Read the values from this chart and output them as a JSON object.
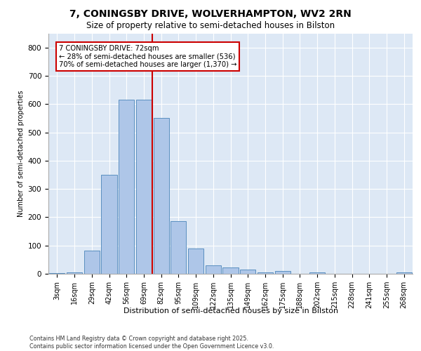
{
  "title_line1": "7, CONINGSBY DRIVE, WOLVERHAMPTON, WV2 2RN",
  "title_line2": "Size of property relative to semi-detached houses in Bilston",
  "xlabel": "Distribution of semi-detached houses by size in Bilston",
  "ylabel": "Number of semi-detached properties",
  "footer_line1": "Contains HM Land Registry data © Crown copyright and database right 2025.",
  "footer_line2": "Contains public sector information licensed under the Open Government Licence v3.0.",
  "annotation_line1": "7 CONINGSBY DRIVE: 72sqm",
  "annotation_line2": "← 28% of semi-detached houses are smaller (536)",
  "annotation_line3": "70% of semi-detached houses are larger (1,370) →",
  "bar_categories": [
    "3sqm",
    "16sqm",
    "29sqm",
    "42sqm",
    "56sqm",
    "69sqm",
    "82sqm",
    "95sqm",
    "109sqm",
    "122sqm",
    "135sqm",
    "149sqm",
    "162sqm",
    "175sqm",
    "188sqm",
    "202sqm",
    "215sqm",
    "228sqm",
    "241sqm",
    "255sqm",
    "268sqm"
  ],
  "bar_heights": [
    2,
    5,
    82,
    350,
    615,
    615,
    550,
    185,
    90,
    30,
    22,
    14,
    5,
    10,
    0,
    5,
    0,
    0,
    0,
    0,
    5
  ],
  "vline_position": 5.5,
  "ylim": [
    0,
    850
  ],
  "yticks": [
    0,
    100,
    200,
    300,
    400,
    500,
    600,
    700,
    800
  ],
  "bar_color": "#aec6e8",
  "bar_edge_color": "#5a8fc0",
  "vline_color": "#cc0000",
  "bg_color": "#dde8f5",
  "grid_color": "#ffffff",
  "annotation_edge_color": "#cc0000",
  "title_fontsize": 10,
  "subtitle_fontsize": 8.5,
  "ylabel_fontsize": 7,
  "xlabel_fontsize": 8,
  "tick_fontsize": 7,
  "footer_fontsize": 5.8
}
